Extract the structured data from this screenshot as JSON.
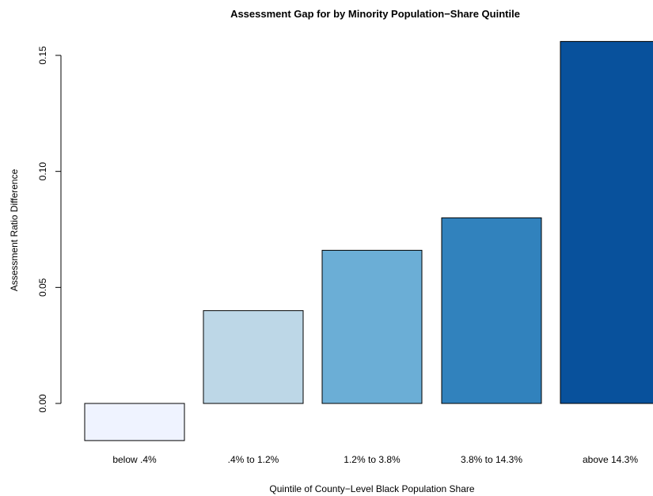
{
  "chart_data": {
    "type": "bar",
    "title": "Assessment Gap for by Minority Population−Share Quintile",
    "xlabel": "Quintile of County−Level Black Population Share",
    "ylabel": "Assessment Ratio Difference",
    "categories": [
      "below .4%",
      ".4% to 1.2%",
      "1.2% to 3.8%",
      "3.8% to 14.3%",
      "above 14.3%"
    ],
    "values": [
      -0.016,
      0.04,
      0.066,
      0.08,
      0.156
    ],
    "colors": [
      "#eff3ff",
      "#bdd7e7",
      "#6baed6",
      "#3182bd",
      "#08519c"
    ],
    "yticks": [
      0.0,
      0.05,
      0.1,
      0.15
    ],
    "ytick_labels": [
      "0.00",
      "0.05",
      "0.10",
      "0.15"
    ],
    "ylim": [
      -0.016,
      0.156
    ],
    "grid": false,
    "legend": "none"
  }
}
